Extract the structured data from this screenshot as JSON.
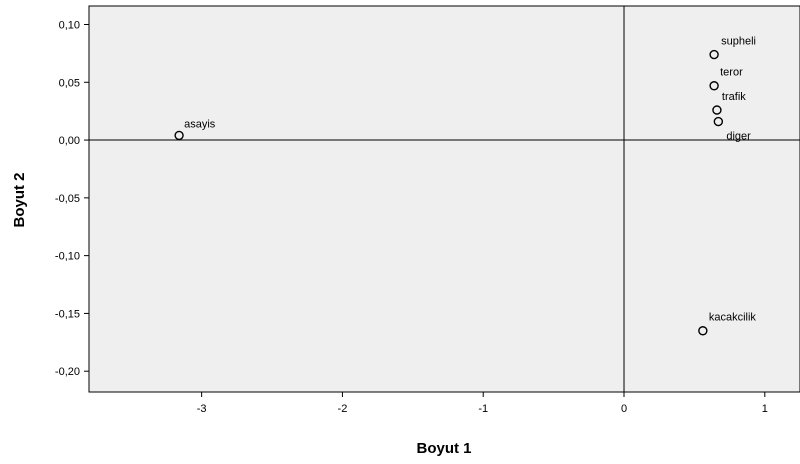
{
  "chart_data": {
    "type": "scatter",
    "xlabel": "Boyut 1",
    "ylabel": "Boyut 2",
    "xlim": [
      -3.8,
      1.25
    ],
    "ylim": [
      -0.218,
      0.116
    ],
    "x_ticks": [
      -3,
      -2,
      -1,
      0,
      1
    ],
    "x_tick_labels": [
      "-3",
      "-2",
      "-1",
      "0",
      "1"
    ],
    "y_ticks": [
      0.1,
      0.05,
      0.0,
      -0.05,
      -0.1,
      -0.15,
      -0.2
    ],
    "y_tick_labels": [
      "0,10",
      "0,05",
      "0,00",
      "-0,05",
      "-0,10",
      "-0,15",
      "-0,20"
    ],
    "reference_lines": {
      "x": 0,
      "y": 0
    },
    "grid": false,
    "colors": {
      "plot_background": "#efefef",
      "marker": "#000000"
    },
    "points": [
      {
        "label": "asayis",
        "x": -3.16,
        "y": 0.004
      },
      {
        "label": "supheli",
        "x": 0.64,
        "y": 0.074
      },
      {
        "label": "teror",
        "x": 0.64,
        "y": 0.047
      },
      {
        "label": "trafik",
        "x": 0.66,
        "y": 0.026
      },
      {
        "label": "diger",
        "x": 0.67,
        "y": 0.016
      },
      {
        "label": "kacakcilik",
        "x": 0.56,
        "y": -0.165
      }
    ]
  }
}
